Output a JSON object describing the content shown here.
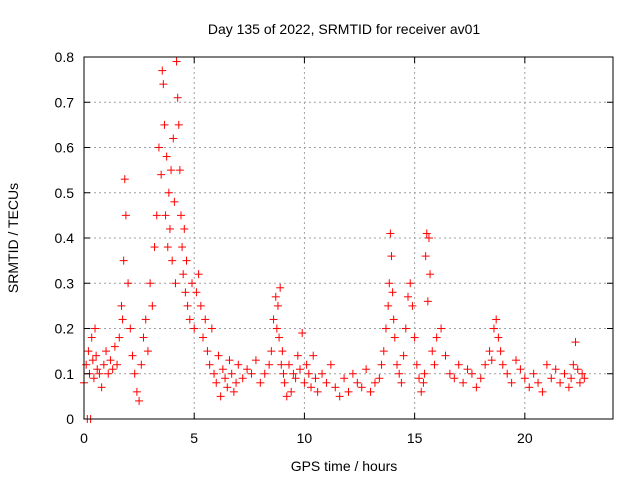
{
  "chart_data": {
    "type": "scatter",
    "title": "Day 135 of 2022, SRMTID for receiver av01",
    "xlabel": "GPS time / hours",
    "ylabel": "SRMTID / TECUs",
    "xlim": [
      0,
      24
    ],
    "ylim": [
      0,
      0.8
    ],
    "xticks": [
      0,
      5,
      10,
      15,
      20
    ],
    "xtick_labels": [
      "0",
      "5",
      "10",
      "15",
      "20"
    ],
    "yticks": [
      0,
      0.1,
      0.2,
      0.3,
      0.4,
      0.5,
      0.6,
      0.7,
      0.8
    ],
    "ytick_labels": [
      "0",
      "0.1",
      "0.2",
      "0.3",
      "0.4",
      "0.5",
      "0.6",
      "0.7",
      "0.8"
    ],
    "grid": true,
    "marker": "plus",
    "color": "#ff0000",
    "series": [
      {
        "name": "av01",
        "x": [
          0.0,
          0.1,
          0.15,
          0.2,
          0.25,
          0.3,
          0.35,
          0.4,
          0.45,
          0.5,
          0.55,
          0.6,
          0.7,
          0.8,
          0.9,
          1.0,
          1.1,
          1.2,
          1.3,
          1.4,
          1.5,
          1.6,
          1.7,
          1.75,
          1.8,
          1.85,
          1.9,
          2.0,
          2.1,
          2.2,
          2.3,
          2.4,
          2.5,
          2.6,
          2.7,
          2.8,
          2.9,
          3.0,
          3.1,
          3.2,
          3.3,
          3.4,
          3.5,
          3.55,
          3.6,
          3.65,
          3.7,
          3.75,
          3.8,
          3.85,
          3.9,
          3.95,
          4.0,
          4.05,
          4.1,
          4.15,
          4.2,
          4.25,
          4.3,
          4.35,
          4.4,
          4.45,
          4.5,
          4.55,
          4.6,
          4.65,
          4.7,
          4.8,
          4.9,
          5.0,
          5.1,
          5.2,
          5.3,
          5.4,
          5.5,
          5.6,
          5.7,
          5.8,
          5.9,
          6.0,
          6.1,
          6.2,
          6.3,
          6.4,
          6.5,
          6.6,
          6.7,
          6.8,
          6.9,
          7.0,
          7.2,
          7.4,
          7.6,
          7.8,
          8.0,
          8.2,
          8.4,
          8.5,
          8.6,
          8.7,
          8.75,
          8.8,
          8.85,
          8.9,
          8.95,
          9.0,
          9.05,
          9.1,
          9.2,
          9.3,
          9.4,
          9.5,
          9.6,
          9.7,
          9.8,
          9.9,
          10.0,
          10.1,
          10.2,
          10.3,
          10.4,
          10.5,
          10.6,
          10.8,
          11.0,
          11.2,
          11.4,
          11.6,
          11.8,
          12.0,
          12.2,
          12.4,
          12.6,
          12.8,
          13.0,
          13.2,
          13.4,
          13.5,
          13.6,
          13.7,
          13.8,
          13.85,
          13.9,
          13.95,
          14.0,
          14.05,
          14.1,
          14.2,
          14.3,
          14.4,
          14.5,
          14.6,
          14.7,
          14.8,
          14.9,
          15.0,
          15.1,
          15.2,
          15.3,
          15.4,
          15.45,
          15.5,
          15.55,
          15.6,
          15.65,
          15.7,
          15.8,
          15.9,
          16.0,
          16.2,
          16.4,
          16.6,
          16.8,
          17.0,
          17.2,
          17.4,
          17.6,
          17.8,
          18.0,
          18.2,
          18.4,
          18.5,
          18.6,
          18.7,
          18.8,
          18.9,
          19.0,
          19.2,
          19.4,
          19.6,
          19.8,
          20.0,
          20.2,
          20.4,
          20.6,
          20.8,
          21.0,
          21.2,
          21.4,
          21.6,
          21.8,
          22.0,
          22.1,
          22.2,
          22.3,
          22.4,
          22.5,
          22.6,
          22.7
        ],
        "y": [
          0.08,
          0.12,
          0.0,
          0.15,
          0.1,
          0.0,
          0.18,
          0.13,
          0.09,
          0.2,
          0.14,
          0.11,
          0.1,
          0.07,
          0.12,
          0.15,
          0.1,
          0.13,
          0.11,
          0.16,
          0.12,
          0.18,
          0.25,
          0.22,
          0.35,
          0.53,
          0.45,
          0.3,
          0.2,
          0.14,
          0.1,
          0.06,
          0.04,
          0.12,
          0.18,
          0.22,
          0.15,
          0.3,
          0.25,
          0.38,
          0.45,
          0.6,
          0.54,
          0.77,
          0.74,
          0.65,
          0.45,
          0.58,
          0.38,
          0.5,
          0.42,
          0.55,
          0.35,
          0.62,
          0.48,
          0.3,
          0.79,
          0.71,
          0.65,
          0.55,
          0.45,
          0.38,
          0.32,
          0.42,
          0.28,
          0.35,
          0.25,
          0.22,
          0.3,
          0.2,
          0.28,
          0.32,
          0.25,
          0.18,
          0.22,
          0.15,
          0.12,
          0.2,
          0.1,
          0.08,
          0.14,
          0.05,
          0.11,
          0.09,
          0.07,
          0.13,
          0.1,
          0.06,
          0.08,
          0.12,
          0.09,
          0.11,
          0.1,
          0.13,
          0.08,
          0.1,
          0.12,
          0.15,
          0.22,
          0.27,
          0.2,
          0.25,
          0.18,
          0.29,
          0.12,
          0.15,
          0.1,
          0.08,
          0.05,
          0.12,
          0.06,
          0.1,
          0.09,
          0.14,
          0.11,
          0.19,
          0.08,
          0.12,
          0.1,
          0.07,
          0.14,
          0.09,
          0.06,
          0.1,
          0.08,
          0.12,
          0.07,
          0.05,
          0.09,
          0.06,
          0.1,
          0.08,
          0.07,
          0.11,
          0.06,
          0.08,
          0.09,
          0.12,
          0.15,
          0.2,
          0.25,
          0.3,
          0.41,
          0.36,
          0.28,
          0.22,
          0.18,
          0.12,
          0.1,
          0.08,
          0.14,
          0.2,
          0.27,
          0.3,
          0.25,
          0.18,
          0.12,
          0.09,
          0.06,
          0.08,
          0.1,
          0.36,
          0.41,
          0.26,
          0.4,
          0.32,
          0.15,
          0.12,
          0.18,
          0.2,
          0.14,
          0.1,
          0.09,
          0.12,
          0.08,
          0.11,
          0.1,
          0.07,
          0.09,
          0.12,
          0.15,
          0.13,
          0.2,
          0.22,
          0.18,
          0.15,
          0.12,
          0.1,
          0.08,
          0.13,
          0.11,
          0.09,
          0.07,
          0.1,
          0.08,
          0.06,
          0.12,
          0.09,
          0.11,
          0.08,
          0.1,
          0.07,
          0.09,
          0.12,
          0.17,
          0.11,
          0.08,
          0.1,
          0.09
        ]
      }
    ]
  }
}
